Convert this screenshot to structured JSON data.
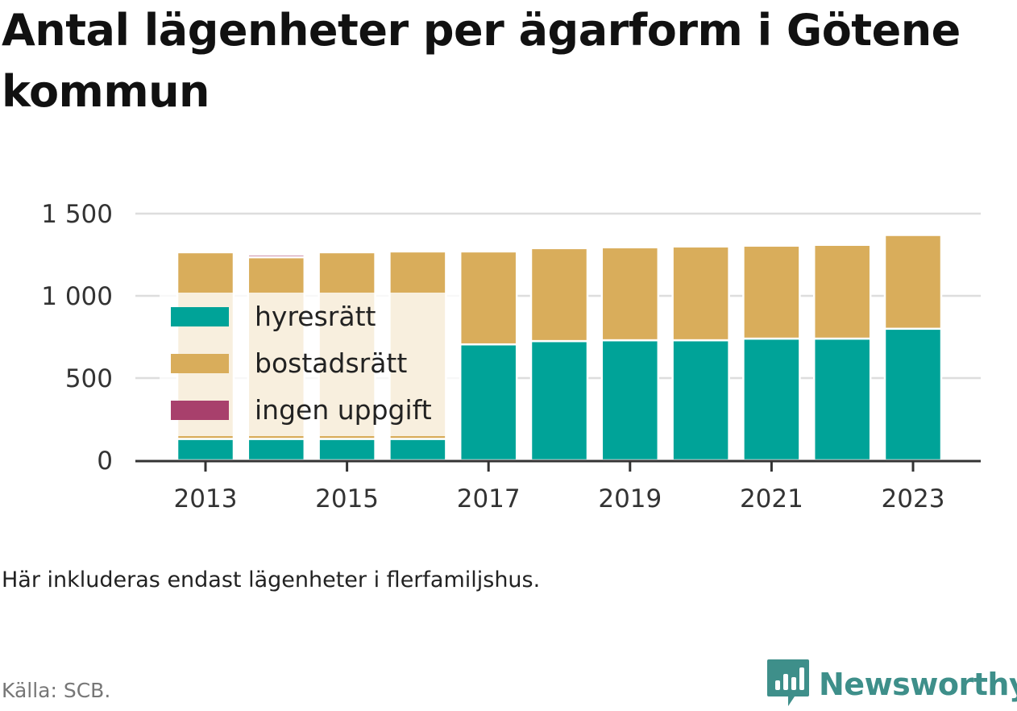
{
  "title": "Antal lägenheter per ägarform i Götene kommun",
  "note": "Här inkluderas endast lägenheter i flerfamiljshus.",
  "source": "Källa: SCB.",
  "brand": {
    "name": "Newsworthy",
    "icon": "newsworthy-logo-icon",
    "color": "#3e8f8a"
  },
  "colors": {
    "hyresratt": "#00a398",
    "bostadsratt": "#d9ad5b",
    "ingen_uppgift": "#a8406c"
  },
  "chart_data": {
    "type": "bar",
    "stacked": true,
    "categories": [
      "2013",
      "2014",
      "2015",
      "2016",
      "2017",
      "2018",
      "2019",
      "2020",
      "2021",
      "2022",
      "2023"
    ],
    "x_tick_labels": [
      "2013",
      "2015",
      "2017",
      "2019",
      "2021",
      "2023"
    ],
    "y_tick_labels": [
      "0",
      "500",
      "1 000",
      "1 500"
    ],
    "y_ticks": [
      0,
      500,
      1000,
      1500
    ],
    "ylim": [
      0,
      1500
    ],
    "grid": true,
    "legend_position": "left-inside",
    "series": [
      {
        "name": "hyresrätt",
        "color": "#00a398",
        "values": [
          130,
          130,
          130,
          130,
          705,
          725,
          730,
          730,
          740,
          740,
          800
        ]
      },
      {
        "name": "bostadsrätt",
        "color": "#d9ad5b",
        "values": [
          1135,
          1105,
          1135,
          1140,
          565,
          565,
          565,
          570,
          565,
          570,
          570
        ]
      },
      {
        "name": "ingen uppgift",
        "color": "#a8406c",
        "values": [
          0,
          15,
          0,
          0,
          0,
          0,
          0,
          0,
          0,
          0,
          0
        ]
      }
    ]
  }
}
